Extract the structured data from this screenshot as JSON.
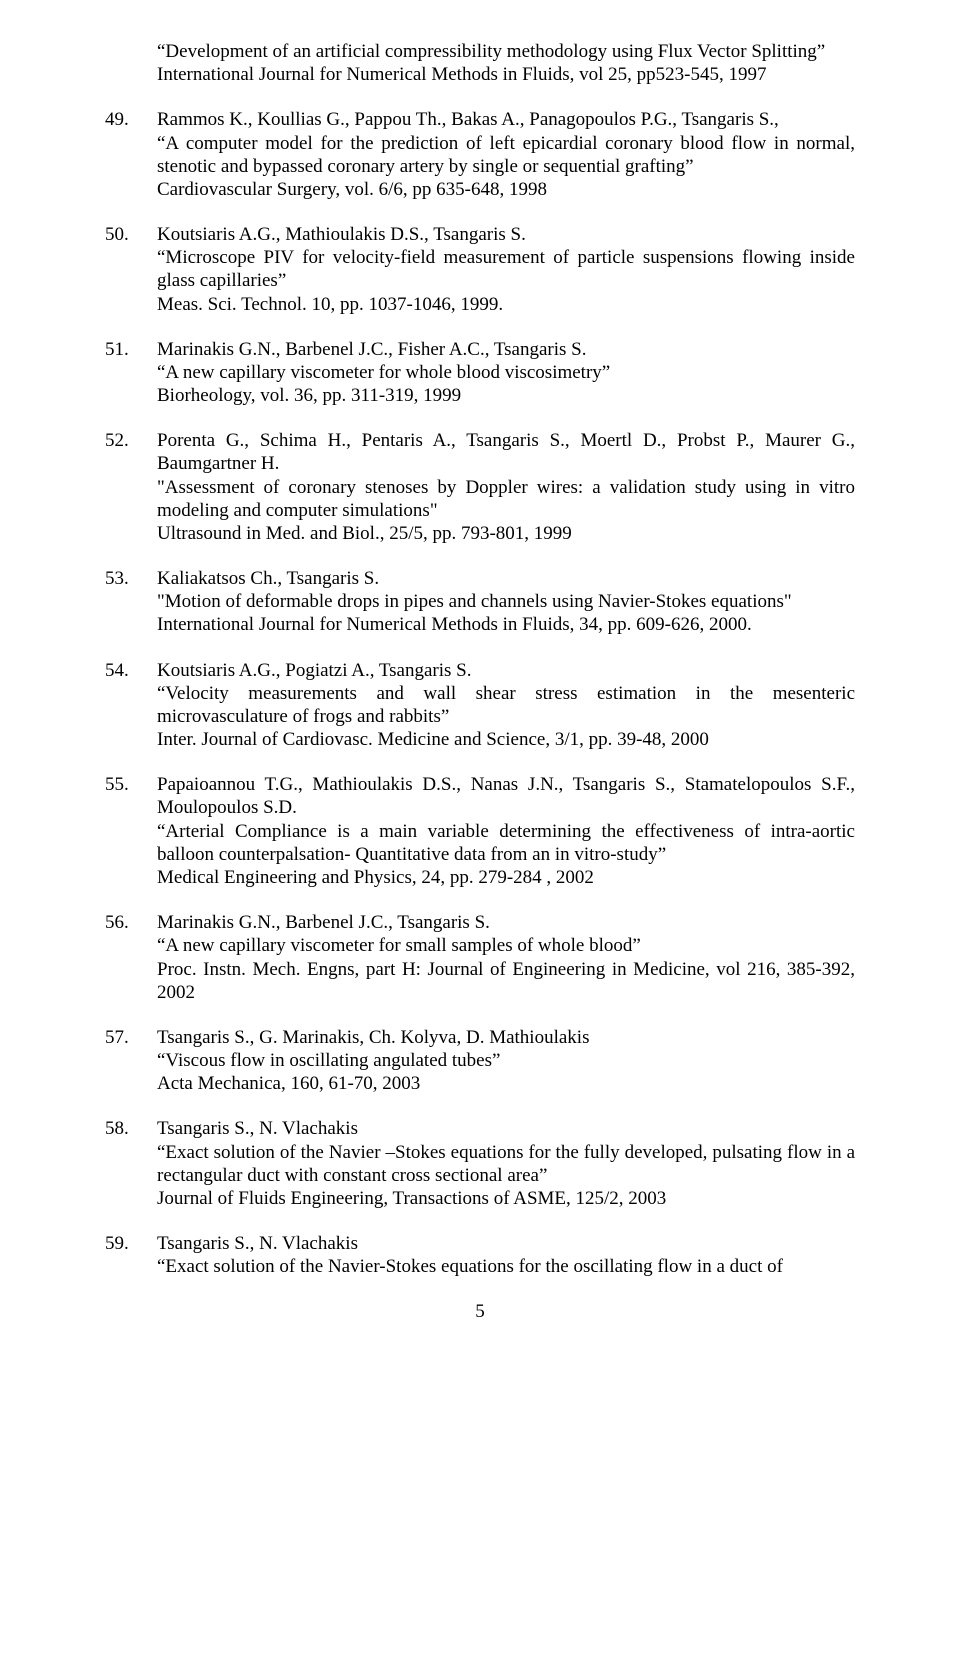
{
  "continuation": {
    "title": "“Development of an artificial compressibility methodology using Flux Vector Splitting”",
    "source": "International Journal for Numerical Methods in Fluids, vol 25,  pp523-545, 1997"
  },
  "refs": [
    {
      "num": "49.",
      "authors": "Rammos K., Koullias G., Pappou Th., Bakas A., Panagopoulos P.G., Tsangaris S.,",
      "title": "“A computer model for the prediction of left epicardial coronary blood flow in normal, stenotic and bypassed coronary artery by single or sequential grafting”",
      "source": "Cardiovascular Surgery, vol. 6/6, pp 635-648, 1998"
    },
    {
      "num": "50.",
      "authors": "Koutsiaris A.G., Mathioulakis D.S., Tsangaris S.",
      "title": "“Microscope PIV for velocity-field measurement of particle suspensions flowing inside glass capillaries”",
      "source": "Meas. Sci. Technol. 10, pp. 1037-1046, 1999."
    },
    {
      "num": "51.",
      "authors": "Marinakis G.N., Barbenel J.C., Fisher A.C., Tsangaris S.",
      "title": "“A new capillary viscometer for whole blood viscosimetry”",
      "source": "Biorheology, vol. 36, pp. 311-319, 1999"
    },
    {
      "num": "52.",
      "authors": "Porenta G., Schima H., Pentaris A., Tsangaris S., Moertl D., Probst P., Maurer G., Baumgartner H.",
      "title": "\"Assessment of coronary stenoses by Doppler wires:  a validation study using in vitro modeling and computer simulations\"",
      "source": "Ultrasound in Med. and Biol., 25/5, pp. 793-801, 1999"
    },
    {
      "num": "53.",
      "authors": "Kaliakatsos Ch., Tsangaris S.",
      "title": "\"Motion of deformable drops in pipes and channels using Navier-Stokes equations\"",
      "source": "International Journal for Numerical Methods in Fluids, 34, pp. 609-626,  2000."
    },
    {
      "num": "54.",
      "authors": "Koutsiaris A.G., Pogiatzi A., Tsangaris S.",
      "title": "“Velocity measurements and wall shear stress estimation in the mesenteric microvasculature of frogs and rabbits”",
      "source": "Inter. Journal of Cardiovasc. Medicine and Science, 3/1, pp. 39-48, 2000"
    },
    {
      "num": "55.",
      "authors": "Papaioannou T.G., Mathioulakis D.S., Nanas J.N., Tsangaris S., Stamatelopoulos S.F., Moulopoulos S.D.",
      "title": "“Arterial Compliance is a main variable determining the effectiveness of intra-aortic balloon counterpalsation- Quantitative data from an in vitro-study”",
      "source": "Medical Engineering and Physics, 24, pp. 279-284 , 2002"
    },
    {
      "num": "56.",
      "authors": "Marinakis G.N., Barbenel J.C., Tsangaris S.",
      "title": "“A new capillary viscometer for small samples of whole blood”",
      "source": "Proc. Instn. Mech. Engns, part H: Journal of Engineering in Medicine, vol 216, 385-392, 2002"
    },
    {
      "num": "57.",
      "authors": "Tsangaris S., G. Marinakis, Ch. Kolyva, D. Mathioulakis",
      "title": "“Viscous flow in oscillating angulated tubes”",
      "source": "Acta Mechanica, 160, 61-70, 2003"
    },
    {
      "num": "58.",
      "authors": "Tsangaris S., N. Vlachakis",
      "title": "“Exact solution of the Navier –Stokes equations for the fully developed, pulsating flow in a rectangular duct with constant cross sectional area”",
      "source": "Journal of Fluids Engineering, Transactions of ASME, 125/2, 2003"
    },
    {
      "num": "59.",
      "authors": "Tsangaris S., N. Vlachakis",
      "title": "“Exact solution of the Navier-Stokes equations for the oscillating flow in a duct of",
      "source": ""
    }
  ],
  "pagenum": "5"
}
